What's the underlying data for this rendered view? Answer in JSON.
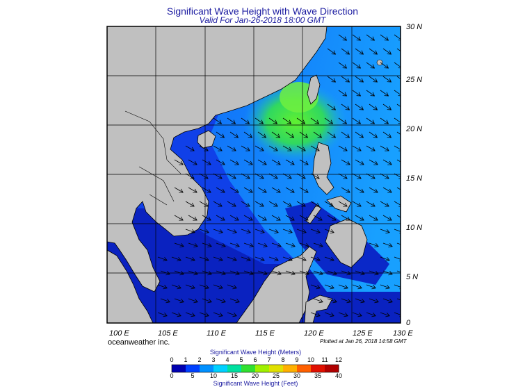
{
  "title": "Significant Wave Height with Wave Direction",
  "subtitle": "Valid For Jan-26-2018 18:00 GMT",
  "credit": "oceanweather inc.",
  "plotted": "Plotted at Jan 26, 2018 14:58 GMT",
  "lat_labels": [
    "30 N",
    "25 N",
    "20 N",
    "15 N",
    "10 N",
    "5 N",
    "0"
  ],
  "lon_labels": [
    "100 E",
    "105 E",
    "110 E",
    "115 E",
    "120 E",
    "125 E",
    "130 E"
  ],
  "legend": {
    "meters_title": "Significant Wave Height (Meters)",
    "feet_title": "Significant Wave Height (Feet)",
    "meters_ticks": [
      "0",
      "1",
      "2",
      "3",
      "4",
      "5",
      "6",
      "7",
      "8",
      "9",
      "10",
      "11",
      "12"
    ],
    "feet_ticks": [
      "0",
      "5",
      "10",
      "15",
      "20",
      "25",
      "30",
      "35",
      "40"
    ],
    "colors": [
      "#0000b0",
      "#0040ff",
      "#0090ff",
      "#00d0ff",
      "#00e0a0",
      "#30e030",
      "#a0f000",
      "#e0e000",
      "#ffb000",
      "#ff6000",
      "#e01000",
      "#b00000"
    ]
  },
  "colors": {
    "land": "#c0c0c0",
    "deep_blue": "#1020c8",
    "mid_blue": "#1050f0",
    "light_blue": "#1890ff",
    "green": "#40e040",
    "title_text": "#1a1aa0"
  }
}
